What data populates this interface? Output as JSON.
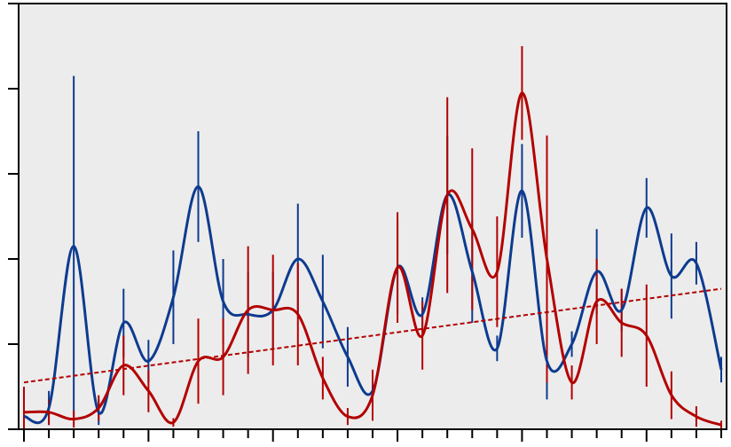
{
  "chart_data": {
    "type": "line",
    "title": "",
    "xlabel": "",
    "ylabel": "",
    "xlim": [
      0,
      28
    ],
    "ylim": [
      0,
      5
    ],
    "grid": false,
    "legend": "none",
    "background": "#ececec",
    "series": [
      {
        "color": "#0d3b8f",
        "points": [
          {
            "x": 0,
            "y": 0.15,
            "err": 0.3
          },
          {
            "x": 1,
            "y": 0.25,
            "err": 0.2
          },
          {
            "x": 2,
            "y": 2.15,
            "err": 2.0
          },
          {
            "x": 3,
            "y": 0.2,
            "err": 0.15
          },
          {
            "x": 4,
            "y": 1.25,
            "err": 0.4
          },
          {
            "x": 5,
            "y": 0.8,
            "err": 0.25
          },
          {
            "x": 6,
            "y": 1.55,
            "err": 0.55
          },
          {
            "x": 7,
            "y": 2.85,
            "err": 0.65
          },
          {
            "x": 8,
            "y": 1.5,
            "err": 0.5
          },
          {
            "x": 9,
            "y": 1.35,
            "err": 0.5
          },
          {
            "x": 10,
            "y": 1.4,
            "err": 0.45
          },
          {
            "x": 11,
            "y": 2.0,
            "err": 0.65
          },
          {
            "x": 12,
            "y": 1.5,
            "err": 0.55
          },
          {
            "x": 13,
            "y": 0.85,
            "err": 0.35
          },
          {
            "x": 14,
            "y": 0.45,
            "err": 0.15
          },
          {
            "x": 15,
            "y": 1.9,
            "err": 0.55
          },
          {
            "x": 16,
            "y": 1.35,
            "err": 0.2
          },
          {
            "x": 17,
            "y": 2.75,
            "err": 0.7
          },
          {
            "x": 18,
            "y": 1.85,
            "err": 0.6
          },
          {
            "x": 19,
            "y": 0.95,
            "err": 0.15
          },
          {
            "x": 20,
            "y": 2.8,
            "err": 0.55
          },
          {
            "x": 21,
            "y": 0.8,
            "err": 0.45
          },
          {
            "x": 22,
            "y": 1.0,
            "err": 0.15
          },
          {
            "x": 23,
            "y": 1.85,
            "err": 0.5
          },
          {
            "x": 24,
            "y": 1.4,
            "err": 0.25
          },
          {
            "x": 25,
            "y": 2.6,
            "err": 0.35
          },
          {
            "x": 26,
            "y": 1.8,
            "err": 0.5
          },
          {
            "x": 27,
            "y": 1.95,
            "err": 0.25
          },
          {
            "x": 28,
            "y": 0.7,
            "err": 0.15
          }
        ]
      },
      {
        "color": "#b30000",
        "points": [
          {
            "x": 0,
            "y": 0.2,
            "err": 0.3
          },
          {
            "x": 1,
            "y": 0.2,
            "err": 0.15
          },
          {
            "x": 2,
            "y": 0.12,
            "err": 0.1
          },
          {
            "x": 3,
            "y": 0.25,
            "err": 0.15
          },
          {
            "x": 4,
            "y": 0.75,
            "err": 0.35
          },
          {
            "x": 5,
            "y": 0.45,
            "err": 0.25
          },
          {
            "x": 6,
            "y": 0.08,
            "err": 0.05
          },
          {
            "x": 7,
            "y": 0.8,
            "err": 0.5
          },
          {
            "x": 8,
            "y": 0.85,
            "err": 0.45
          },
          {
            "x": 9,
            "y": 1.4,
            "err": 0.75
          },
          {
            "x": 10,
            "y": 1.4,
            "err": 0.65
          },
          {
            "x": 11,
            "y": 1.35,
            "err": 0.6
          },
          {
            "x": 12,
            "y": 0.6,
            "err": 0.25
          },
          {
            "x": 13,
            "y": 0.15,
            "err": 0.1
          },
          {
            "x": 14,
            "y": 0.4,
            "err": 0.3
          },
          {
            "x": 15,
            "y": 1.9,
            "err": 0.65
          },
          {
            "x": 16,
            "y": 1.1,
            "err": 0.4
          },
          {
            "x": 17,
            "y": 2.75,
            "err": 1.15
          },
          {
            "x": 18,
            "y": 2.35,
            "err": 0.95
          },
          {
            "x": 19,
            "y": 1.85,
            "err": 0.65
          },
          {
            "x": 20,
            "y": 3.95,
            "err": 0.55
          },
          {
            "x": 21,
            "y": 2.0,
            "err": 1.45
          },
          {
            "x": 22,
            "y": 0.55,
            "err": 0.2
          },
          {
            "x": 23,
            "y": 1.5,
            "err": 0.5
          },
          {
            "x": 24,
            "y": 1.25,
            "err": 0.4
          },
          {
            "x": 25,
            "y": 1.1,
            "err": 0.6
          },
          {
            "x": 26,
            "y": 0.4,
            "err": 0.28
          },
          {
            "x": 27,
            "y": 0.15,
            "err": 0.12
          },
          {
            "x": 28,
            "y": 0.05,
            "err": 0.05
          }
        ]
      }
    ],
    "trendline": {
      "color": "#b30000",
      "style": "dashed",
      "y_start": 0.55,
      "y_end": 1.65
    }
  }
}
